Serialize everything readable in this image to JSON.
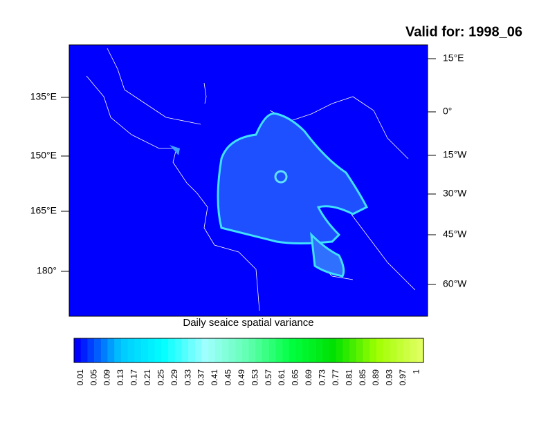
{
  "title": "Valid for: 1998_06",
  "map": {
    "left_labels": [
      "135°E",
      "150°E",
      "165°E",
      "180°"
    ],
    "right_labels": [
      "15°E",
      "0°",
      "15°W",
      "30°W",
      "45°W",
      "60°W"
    ],
    "caption": "Daily seaice spatial variance",
    "background": "#0000ff"
  },
  "colorbar": {
    "labels": [
      "0.01",
      "0.05",
      "0.09",
      "0.13",
      "0.17",
      "0.21",
      "0.25",
      "0.29",
      "0.33",
      "0.37",
      "0.41",
      "0.45",
      "0.49",
      "0.53",
      "0.57",
      "0.61",
      "0.65",
      "0.69",
      "0.73",
      "0.77",
      "0.81",
      "0.85",
      "0.89",
      "0.93",
      "0.97",
      "1"
    ],
    "colors": [
      "#0000ff",
      "#00c8ff",
      "#00ffff",
      "#a0ffff",
      "#60ffb0",
      "#00ff40",
      "#00e000",
      "#a0ff00",
      "#e0ff60"
    ]
  }
}
